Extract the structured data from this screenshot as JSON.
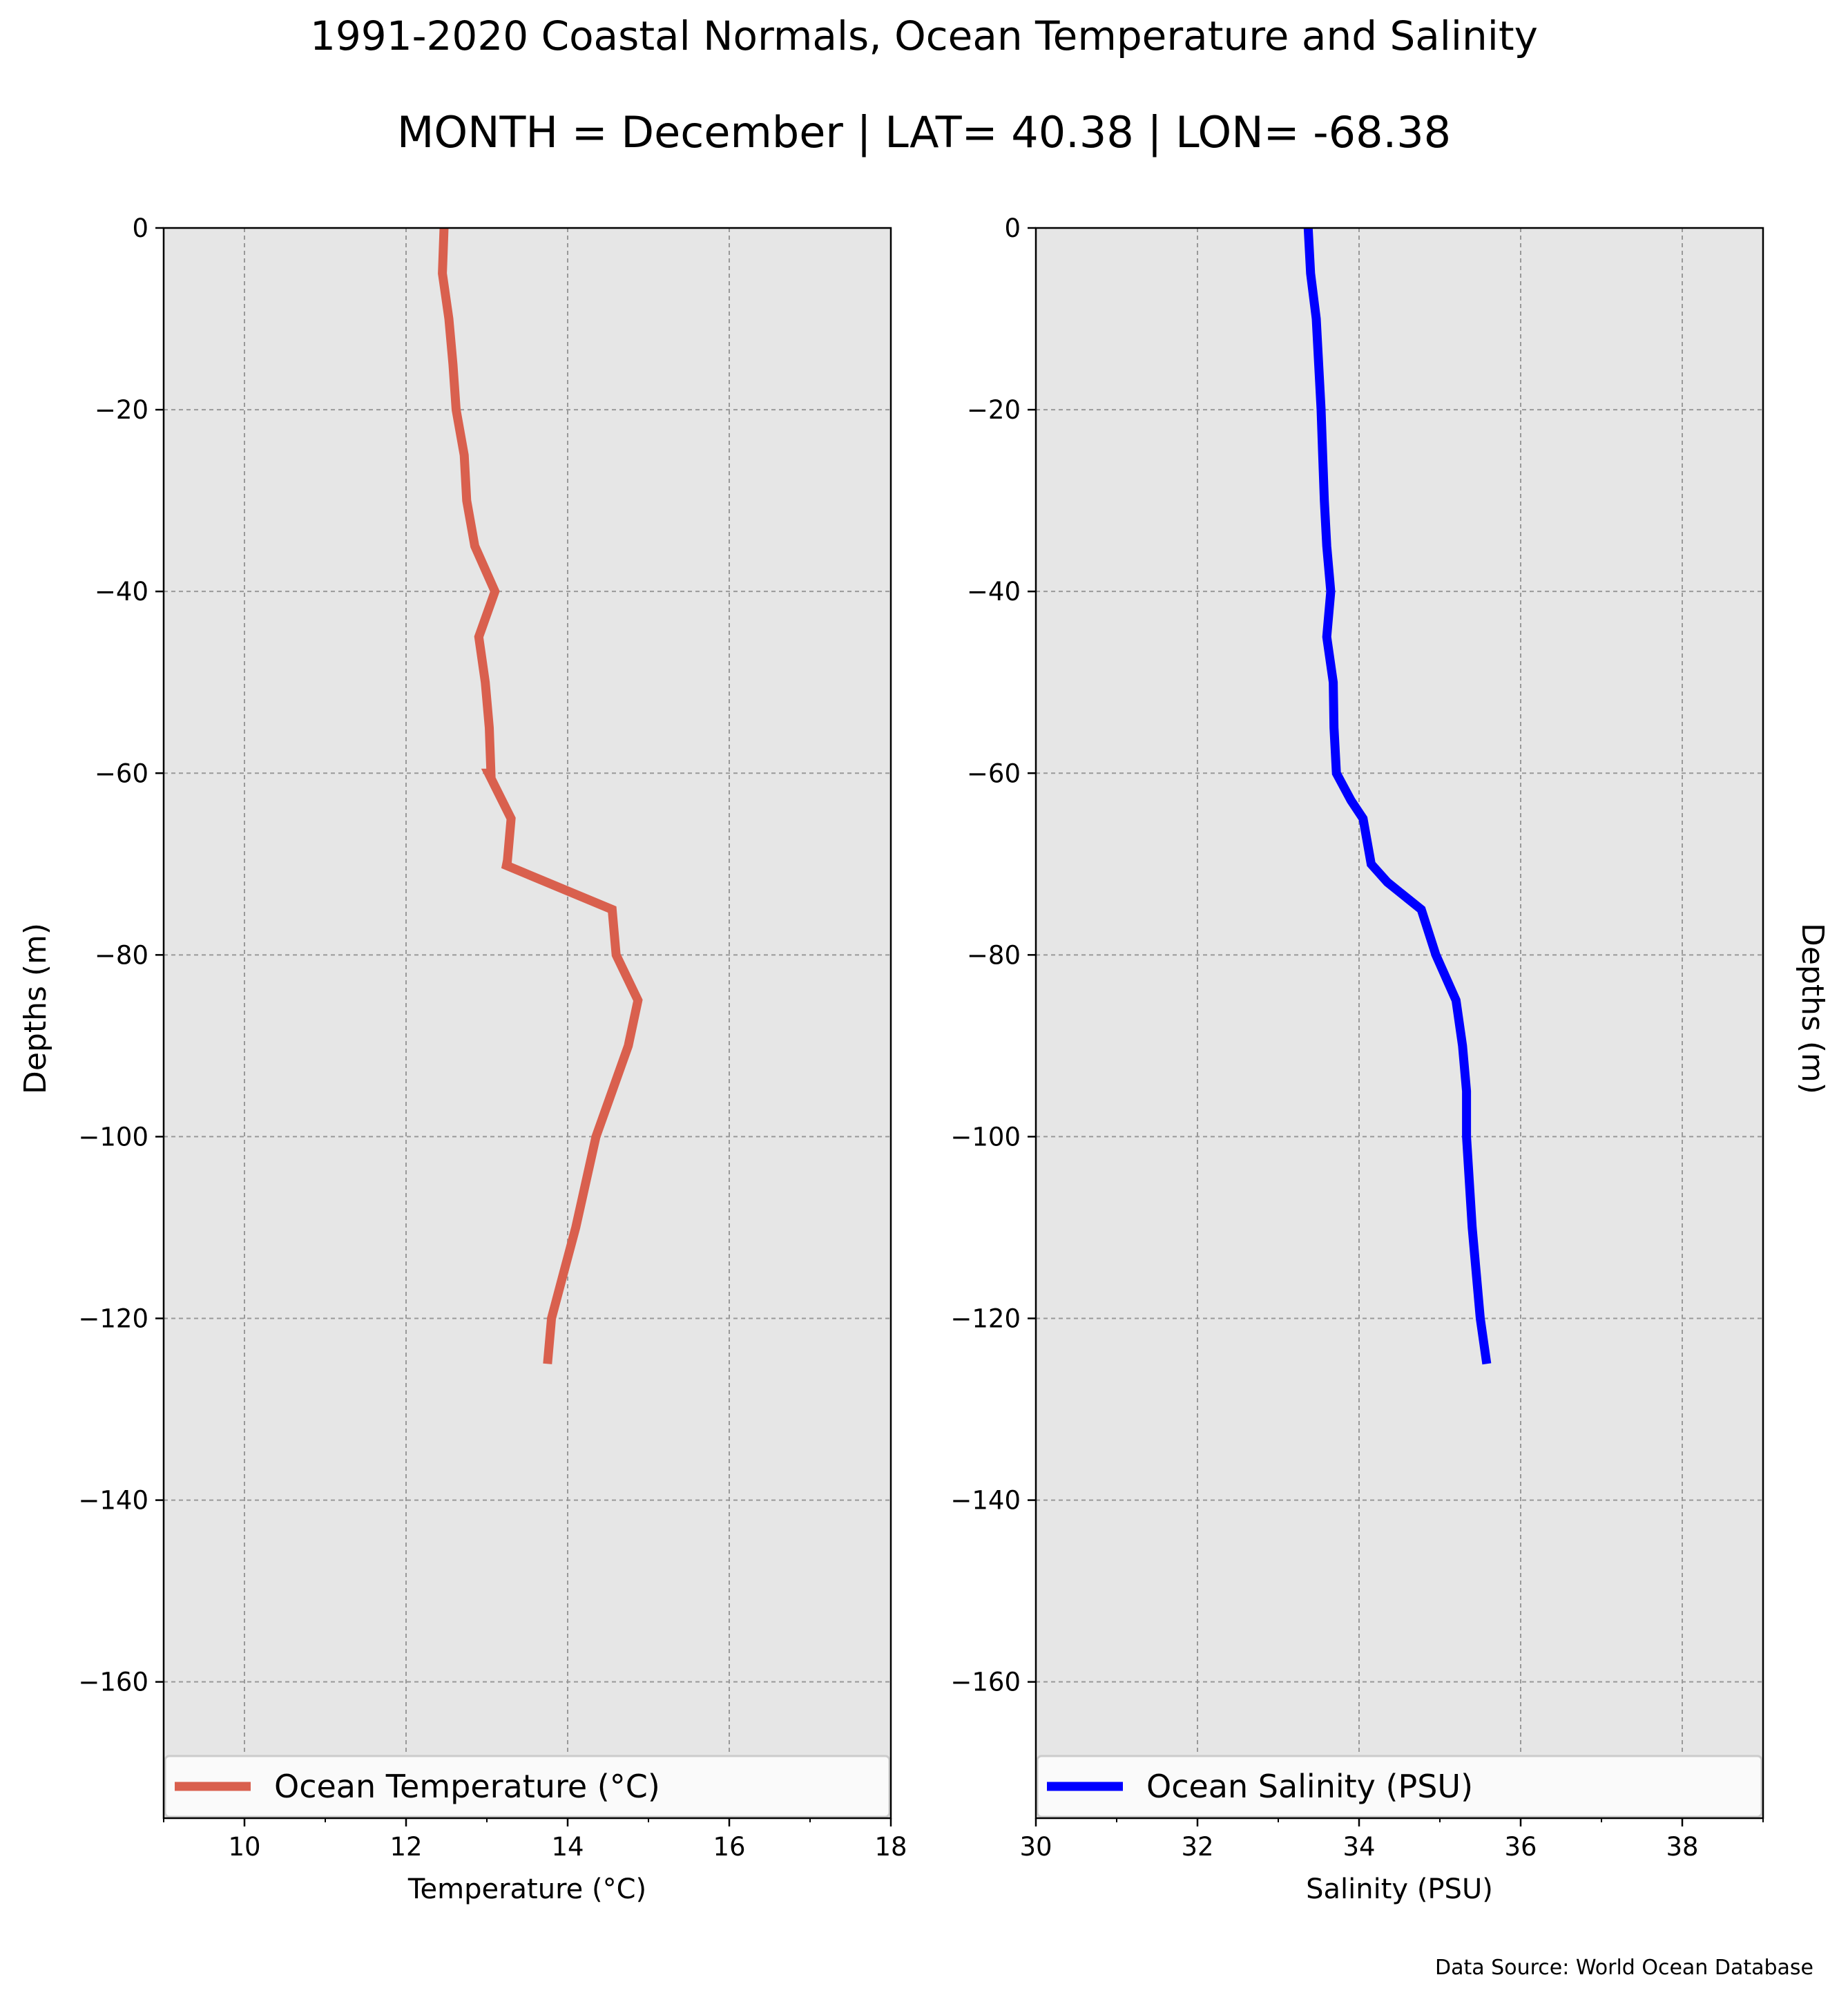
{
  "figure": {
    "title": "1991-2020 Coastal Normals, Ocean Temperature and Salinity",
    "subtitle": "MONTH = December | LAT= 40.38 | LON= -68.38",
    "source": "Data Source: World Ocean Database"
  },
  "chart_data": [
    {
      "type": "line",
      "xlabel": "Temperature ($^\\circ$C)",
      "xlabel_display": "Temperature (°C)",
      "ylabel": "Depths (m)",
      "xlim": [
        9,
        18
      ],
      "ylim": [
        -175,
        0
      ],
      "xticks": [
        10,
        12,
        14,
        16,
        18
      ],
      "yticks": [
        0,
        -20,
        -40,
        -60,
        -80,
        -100,
        -120,
        -140,
        -160
      ],
      "ytick_labels": [
        "0",
        "−20",
        "−40",
        "−60",
        "−80",
        "−100",
        "−120",
        "−140",
        "−160"
      ],
      "grid": true,
      "legend": "bottom",
      "series": [
        {
          "name": "Ocean Temperature (°C)",
          "color": "#d9604e",
          "x": [
            12.47,
            12.45,
            12.53,
            12.58,
            12.62,
            12.72,
            12.75,
            12.85,
            13.1,
            12.9,
            12.98,
            13.03,
            13.05,
            13.02,
            13.3,
            13.25,
            13.2,
            14.55,
            14.6,
            14.87,
            14.75,
            14.55,
            14.35,
            14.1,
            13.95,
            13.8,
            13.75
          ],
          "y": [
            0,
            -5,
            -10,
            -15,
            -20,
            -25,
            -30,
            -35,
            -40,
            -45,
            -50,
            -55,
            -60,
            -60,
            -65,
            -70,
            -70,
            -75,
            -80,
            -85,
            -90,
            -95,
            -100,
            -110,
            -115,
            -120,
            -125
          ]
        }
      ]
    },
    {
      "type": "line",
      "xlabel": "Salinity (PSU)",
      "ylabel": "Depths (m)",
      "xlim": [
        30,
        39
      ],
      "ylim": [
        -175,
        0
      ],
      "xticks": [
        30,
        32,
        34,
        36,
        38
      ],
      "yticks": [
        0,
        -20,
        -40,
        -60,
        -80,
        -100,
        -120,
        -140,
        -160
      ],
      "ytick_labels": [
        "0",
        "−20",
        "−40",
        "−60",
        "−80",
        "−100",
        "−120",
        "−140",
        "−160"
      ],
      "grid": true,
      "legend": "bottom",
      "series": [
        {
          "name": "Ocean Salinity (PSU)",
          "color": "#0000ff",
          "x": [
            33.37,
            33.4,
            33.47,
            33.5,
            33.53,
            33.55,
            33.57,
            33.6,
            33.65,
            33.6,
            33.68,
            33.69,
            33.72,
            33.9,
            34.05,
            34.15,
            34.35,
            34.77,
            34.95,
            35.2,
            35.28,
            35.33,
            35.33,
            35.4,
            35.5,
            35.58
          ],
          "y": [
            0,
            -5,
            -10,
            -15,
            -20,
            -25,
            -30,
            -35,
            -40,
            -45,
            -50,
            -55,
            -60,
            -63,
            -65,
            -70,
            -72,
            -75,
            -80,
            -85,
            -90,
            -95,
            -100,
            -110,
            -120,
            -125
          ]
        }
      ]
    }
  ]
}
